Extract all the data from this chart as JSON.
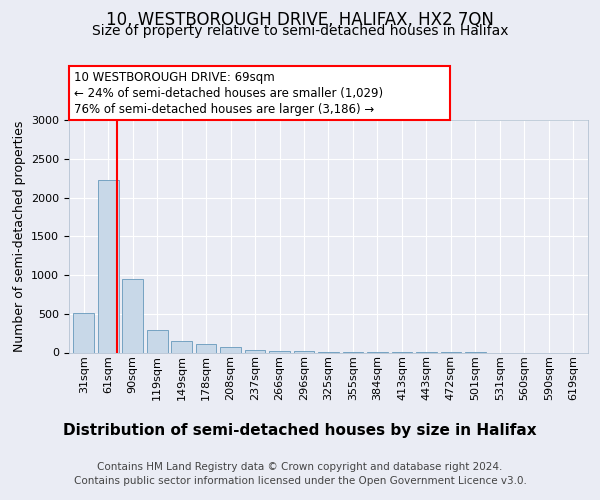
{
  "title1": "10, WESTBOROUGH DRIVE, HALIFAX, HX2 7QN",
  "title2": "Size of property relative to semi-detached houses in Halifax",
  "xlabel": "Distribution of semi-detached houses by size in Halifax",
  "ylabel": "Number of semi-detached properties",
  "categories": [
    "31sqm",
    "61sqm",
    "90sqm",
    "119sqm",
    "149sqm",
    "178sqm",
    "208sqm",
    "237sqm",
    "266sqm",
    "296sqm",
    "325sqm",
    "355sqm",
    "384sqm",
    "413sqm",
    "443sqm",
    "472sqm",
    "501sqm",
    "531sqm",
    "560sqm",
    "590sqm",
    "619sqm"
  ],
  "values": [
    510,
    2230,
    950,
    295,
    150,
    110,
    65,
    35,
    20,
    15,
    12,
    8,
    5,
    3,
    2,
    1,
    1,
    0,
    0,
    0,
    0
  ],
  "bar_color": "#c8d8e8",
  "bar_edge_color": "#6699bb",
  "red_line_x": 1.38,
  "annotation_title": "10 WESTBOROUGH DRIVE: 69sqm",
  "annotation_line1": "← 24% of semi-detached houses are smaller (1,029)",
  "annotation_line2": "76% of semi-detached houses are larger (3,186) →",
  "ylim": [
    0,
    3000
  ],
  "yticks": [
    0,
    500,
    1000,
    1500,
    2000,
    2500,
    3000
  ],
  "footnote1": "Contains HM Land Registry data © Crown copyright and database right 2024.",
  "footnote2": "Contains public sector information licensed under the Open Government Licence v3.0.",
  "background_color": "#eaecf4",
  "plot_bg_color": "#eaecf4",
  "grid_color": "#ffffff",
  "title1_fontsize": 12,
  "title2_fontsize": 10,
  "xlabel_fontsize": 11,
  "ylabel_fontsize": 9,
  "tick_fontsize": 8,
  "annotation_fontsize": 8.5,
  "footnote_fontsize": 7.5
}
